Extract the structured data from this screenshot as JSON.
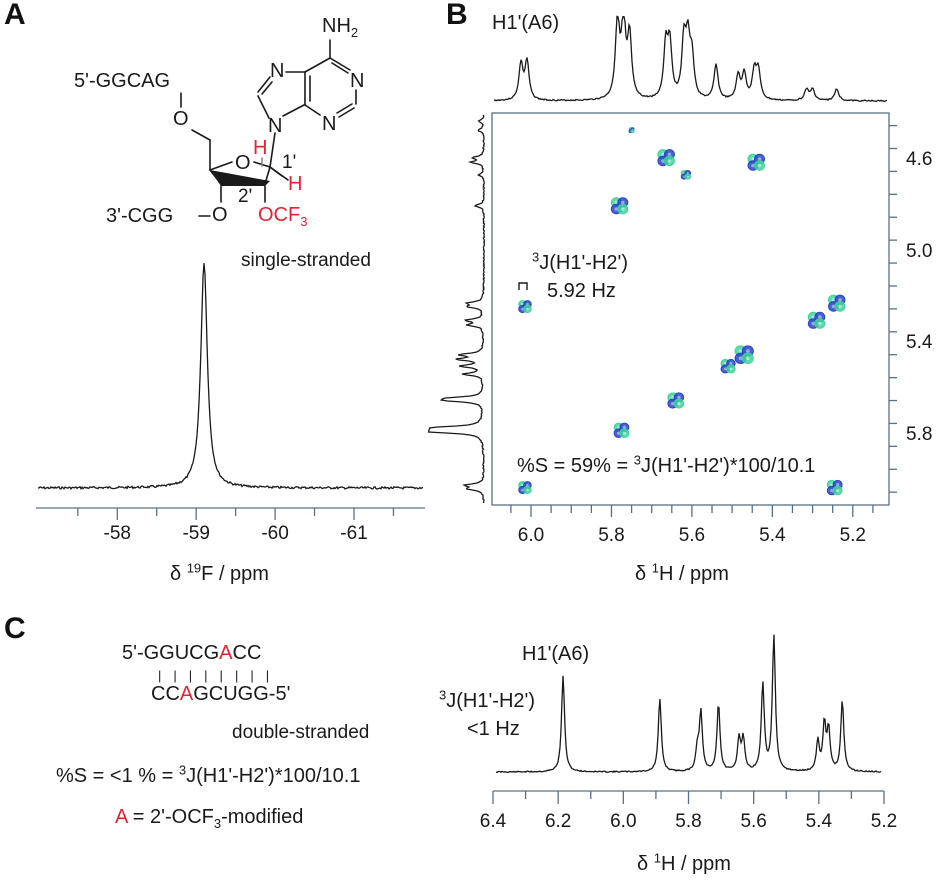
{
  "panels": {
    "A": {
      "letter": "A",
      "structure": {
        "five_prime_strand": "5'-GGCAG",
        "three_prime_strand": "3'-CGG",
        "o5": "O",
        "o3": "O",
        "ring_o": "O",
        "nh2": "NH",
        "nh2_sub": "2",
        "n_labels": [
          "N",
          "N",
          "N",
          "N",
          "N"
        ],
        "h1_label": "H",
        "h2_label": "H",
        "pos1_label": "1'",
        "pos2_label": "2'",
        "ocf3_label": "OCF",
        "ocf3_sub": "3",
        "state_label": "single-stranded"
      },
      "axis": {
        "label_prefix": "δ ",
        "label_sup": "19",
        "label_suffix": "F / ppm",
        "ticks": [
          "-58",
          "-59",
          "-60",
          "-61"
        ]
      }
    },
    "B": {
      "letter": "B",
      "top_label": "H1'(A6)",
      "coupling_label_sup": "3",
      "coupling_label": "J(H1'-H2')",
      "coupling_value": "5.92 Hz",
      "formula_prefix": "%S = 59% = ",
      "formula_sup": "3",
      "formula_suffix": "J(H1'-H2')*100/10.1",
      "x_axis": {
        "label_prefix": "δ ",
        "label_sup": "1",
        "label_suffix": "H / ppm",
        "ticks": [
          "6.0",
          "5.8",
          "5.6",
          "5.4",
          "5.2"
        ]
      },
      "y_axis": {
        "ticks": [
          "4.6",
          "5.0",
          "5.4",
          "5.8"
        ]
      }
    },
    "C": {
      "letter": "C",
      "strand_top_prefix": "5'-GGUCG",
      "strand_top_mod": "A",
      "strand_top_suffix": "CC",
      "base_pairs": "| | | | | | | |",
      "strand_bottom_prefix": "CC",
      "strand_bottom_mod": "A",
      "strand_bottom_suffix": "GCUGG-5'",
      "state_label": "double-stranded",
      "formula_prefix": "%S = <1 % = ",
      "formula_sup": "3",
      "formula_suffix": "J(H1'-H2')*100/10.1",
      "legend_mod": "A",
      "legend_text": " = 2'-OCF",
      "legend_sub": "3",
      "legend_tail": "-modified",
      "peak_label": "H1'(A6)",
      "coupling_label_sup": "3",
      "coupling_label": "J(H1'-H2')",
      "coupling_value": "<1 Hz",
      "x_axis": {
        "label_prefix": "δ ",
        "label_sup": "1",
        "label_suffix": "H / ppm",
        "ticks": [
          "6.4",
          "6.2",
          "6.0",
          "5.8",
          "5.6",
          "5.4",
          "5.2"
        ]
      }
    }
  },
  "colors": {
    "modified_red": "#e8202f",
    "positive_contour": "#2a45c8",
    "negative_contour": "#3fd39a",
    "axis": "#5a6f86",
    "trace": "#1a1a1a"
  },
  "chart_data": [
    {
      "type": "line",
      "title": "A: 19F NMR, single-stranded",
      "xlabel": "δ 19F / ppm",
      "ylabel": "",
      "xlim": [
        -56.97,
        -61.9
      ],
      "x_ticks": [
        -58,
        -59,
        -60,
        -61
      ],
      "peaks": [
        {
          "ppm": -59.1,
          "height": 1.0,
          "width": 0.05
        }
      ]
    },
    {
      "type": "heatmap",
      "title": "B: 2D 1H-1H (E.COSY-type) spectrum, H1'-H2' region",
      "xlabel": "δ 1H / ppm",
      "ylabel": "δ 1H / ppm",
      "xlim": [
        6.097,
        5.11
      ],
      "ylim": [
        4.395,
        6.106
      ],
      "x_ticks": [
        6.0,
        5.8,
        5.6,
        5.4,
        5.2
      ],
      "y_ticks": [
        4.6,
        5.0,
        5.4,
        5.8
      ],
      "annotation": "3J(H1'-H2') 5.92 Hz; %S = 59%",
      "cross_peaks": [
        {
          "x": 5.75,
          "y": 4.47,
          "size": 0.3
        },
        {
          "x": 5.664,
          "y": 4.59,
          "size": 1.0
        },
        {
          "x": 5.615,
          "y": 4.665,
          "size": 0.55
        },
        {
          "x": 5.44,
          "y": 4.61,
          "size": 1.0
        },
        {
          "x": 5.78,
          "y": 4.8,
          "size": 1.0
        },
        {
          "x": 6.015,
          "y": 5.24,
          "size": 0.75
        },
        {
          "x": 5.24,
          "y": 5.225,
          "size": 1.0
        },
        {
          "x": 5.29,
          "y": 5.3,
          "size": 1.0
        },
        {
          "x": 5.47,
          "y": 5.45,
          "size": 1.1
        },
        {
          "x": 5.51,
          "y": 5.5,
          "size": 0.85
        },
        {
          "x": 5.64,
          "y": 5.65,
          "size": 0.95
        },
        {
          "x": 5.775,
          "y": 5.78,
          "size": 0.9
        },
        {
          "x": 6.015,
          "y": 6.03,
          "size": 0.75
        },
        {
          "x": 5.245,
          "y": 6.03,
          "size": 0.9
        }
      ],
      "projection_peaks": [
        {
          "ppm": 6.025,
          "h": 0.45
        },
        {
          "ppm": 6.01,
          "h": 0.48
        },
        {
          "ppm": 5.785,
          "h": 1.0
        },
        {
          "ppm": 5.77,
          "h": 0.98
        },
        {
          "ppm": 5.755,
          "h": 0.78
        },
        {
          "ppm": 5.665,
          "h": 0.66
        },
        {
          "ppm": 5.655,
          "h": 0.67
        },
        {
          "ppm": 5.62,
          "h": 0.7
        },
        {
          "ppm": 5.61,
          "h": 0.68
        },
        {
          "ppm": 5.6,
          "h": 0.5
        },
        {
          "ppm": 5.54,
          "h": 0.44
        },
        {
          "ppm": 5.485,
          "h": 0.3
        },
        {
          "ppm": 5.47,
          "h": 0.32
        },
        {
          "ppm": 5.445,
          "h": 0.35
        },
        {
          "ppm": 5.435,
          "h": 0.36
        },
        {
          "ppm": 5.315,
          "h": 0.14
        },
        {
          "ppm": 5.3,
          "h": 0.14
        },
        {
          "ppm": 5.24,
          "h": 0.15
        }
      ]
    },
    {
      "type": "line",
      "title": "C: 1H NMR, double-stranded",
      "xlabel": "δ 1H / ppm",
      "ylabel": "",
      "xlim": [
        6.4,
        5.2
      ],
      "x_ticks": [
        6.4,
        6.3,
        6.2,
        6.1,
        6.0,
        5.9,
        5.8,
        5.7,
        5.6,
        5.5,
        5.4,
        5.3,
        5.2
      ],
      "annotation": "H1'(A6), 3J(H1'-H2') <1 Hz, %S <1 %",
      "peaks": [
        {
          "ppm": 6.185,
          "h": 0.71
        },
        {
          "ppm": 5.888,
          "h": 0.54
        },
        {
          "ppm": 5.773,
          "h": 0.16
        },
        {
          "ppm": 5.762,
          "h": 0.43
        },
        {
          "ppm": 5.708,
          "h": 0.5
        },
        {
          "ppm": 5.645,
          "h": 0.24
        },
        {
          "ppm": 5.632,
          "h": 0.24
        },
        {
          "ppm": 5.572,
          "h": 0.64
        },
        {
          "ppm": 5.538,
          "h": 1.0
        },
        {
          "ppm": 5.403,
          "h": 0.22
        },
        {
          "ppm": 5.383,
          "h": 0.34
        },
        {
          "ppm": 5.37,
          "h": 0.3
        },
        {
          "ppm": 5.328,
          "h": 0.52
        }
      ]
    }
  ]
}
